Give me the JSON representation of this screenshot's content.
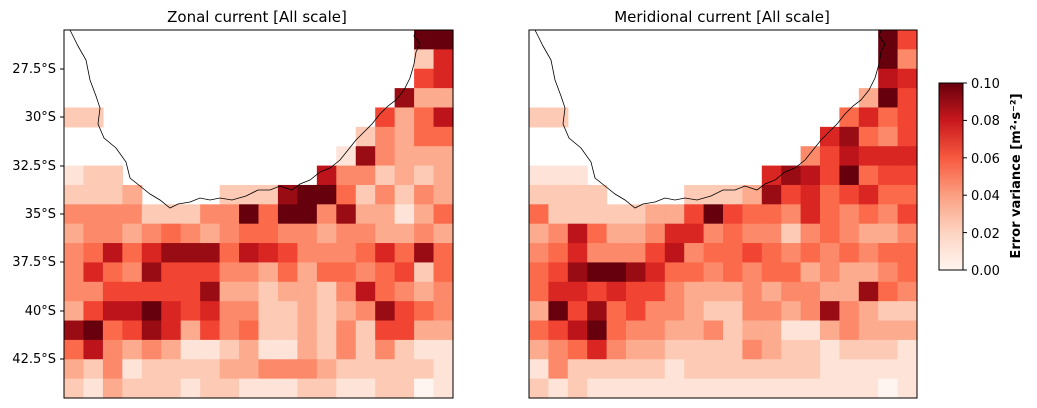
{
  "chart_data": [
    {
      "type": "heatmap",
      "title": "Zonal current [All scale]",
      "ylabel": "",
      "xlabel": "",
      "y_tick_labels": [
        "27.5°S",
        "30°S",
        "32.5°S",
        "35°S",
        "37.5°S",
        "40°S",
        "42.5°S"
      ],
      "lat_range": [
        -44.5,
        -25.5
      ],
      "lon_range": [
        114.0,
        134.0
      ],
      "colormap": "Reds",
      "value_range": [
        0.0,
        0.1
      ],
      "rows_note": "rows run north to south from 26°S to 44°S (1° cells), columns west to east from 114.5°E to 133.5°E; null = land or no data",
      "grid": [
        [
          null,
          null,
          null,
          null,
          null,
          null,
          null,
          null,
          null,
          null,
          null,
          null,
          null,
          null,
          null,
          null,
          null,
          null,
          0.1,
          0.1
        ],
        [
          null,
          null,
          null,
          null,
          null,
          null,
          null,
          null,
          null,
          null,
          null,
          null,
          null,
          null,
          null,
          null,
          null,
          null,
          0.02,
          0.07
        ],
        [
          null,
          null,
          null,
          null,
          null,
          null,
          null,
          null,
          null,
          null,
          null,
          null,
          null,
          null,
          null,
          null,
          null,
          null,
          0.06,
          0.07
        ],
        [
          null,
          null,
          null,
          null,
          null,
          null,
          null,
          null,
          null,
          null,
          null,
          null,
          null,
          null,
          null,
          null,
          null,
          0.09,
          0.03,
          0.03
        ],
        [
          0.02,
          0.02,
          null,
          null,
          null,
          null,
          null,
          null,
          null,
          null,
          null,
          null,
          null,
          null,
          null,
          null,
          0.06,
          0.03,
          0.05,
          0.08
        ],
        [
          null,
          null,
          null,
          null,
          null,
          null,
          null,
          null,
          null,
          null,
          null,
          null,
          null,
          null,
          null,
          0.02,
          0.04,
          0.03,
          0.05,
          0.05
        ],
        [
          null,
          null,
          null,
          null,
          null,
          null,
          null,
          null,
          null,
          null,
          null,
          null,
          null,
          null,
          0.01,
          0.09,
          0.04,
          0.03,
          0.03,
          0.03
        ],
        [
          0.01,
          0.02,
          0.02,
          null,
          null,
          null,
          null,
          null,
          null,
          null,
          null,
          null,
          null,
          0.08,
          0.04,
          0.04,
          0.02,
          0.03,
          0.02,
          0.03
        ],
        [
          0.02,
          0.02,
          0.02,
          0.03,
          null,
          null,
          null,
          null,
          0.02,
          0.02,
          0.02,
          0.09,
          0.1,
          0.1,
          0.05,
          0.02,
          0.04,
          0.02,
          0.04,
          0.03
        ],
        [
          0.04,
          0.04,
          0.04,
          0.04,
          0.02,
          0.02,
          0.02,
          0.04,
          0.04,
          0.1,
          0.05,
          0.1,
          0.1,
          0.04,
          0.09,
          0.03,
          0.03,
          0.01,
          0.03,
          0.05
        ],
        [
          0.03,
          0.04,
          0.04,
          0.03,
          0.04,
          0.05,
          0.04,
          0.03,
          0.04,
          0.05,
          0.05,
          0.04,
          0.04,
          0.03,
          0.04,
          0.04,
          0.03,
          0.03,
          0.04,
          0.03
        ],
        [
          0.04,
          0.05,
          0.08,
          0.05,
          0.07,
          0.09,
          0.09,
          0.09,
          0.05,
          0.08,
          0.07,
          0.06,
          0.04,
          0.04,
          0.04,
          0.05,
          0.07,
          0.05,
          0.09,
          0.05
        ],
        [
          0.04,
          0.07,
          0.05,
          0.04,
          0.09,
          0.06,
          0.06,
          0.06,
          0.04,
          0.04,
          0.03,
          0.05,
          0.03,
          0.05,
          0.05,
          0.04,
          0.05,
          0.06,
          0.02,
          0.05
        ],
        [
          0.04,
          0.04,
          0.06,
          0.06,
          0.06,
          0.06,
          0.06,
          0.09,
          0.03,
          0.03,
          0.02,
          0.03,
          0.03,
          0.02,
          0.04,
          0.08,
          0.05,
          0.04,
          0.03,
          0.04
        ],
        [
          0.03,
          0.06,
          0.08,
          0.08,
          0.1,
          0.07,
          0.06,
          0.07,
          0.04,
          0.04,
          0.02,
          0.02,
          0.03,
          0.02,
          0.03,
          0.04,
          0.09,
          0.06,
          0.05,
          0.04
        ],
        [
          0.09,
          0.1,
          0.05,
          0.06,
          0.09,
          0.07,
          0.03,
          0.06,
          0.04,
          0.05,
          0.02,
          0.02,
          0.03,
          0.02,
          0.04,
          0.02,
          0.06,
          0.06,
          0.03,
          0.03
        ],
        [
          0.05,
          0.08,
          0.04,
          0.03,
          0.04,
          0.03,
          0.01,
          0.01,
          0.02,
          0.03,
          0.01,
          0.01,
          0.03,
          0.02,
          0.04,
          0.02,
          0.04,
          0.02,
          0.01,
          0.01
        ],
        [
          0.03,
          0.02,
          0.04,
          0.01,
          0.02,
          0.02,
          0.02,
          0.02,
          0.03,
          0.03,
          0.04,
          0.04,
          0.04,
          0.03,
          0.02,
          0.02,
          0.02,
          0.02,
          0.02,
          0.01
        ],
        [
          0.02,
          0.01,
          0.03,
          0.02,
          0.02,
          0.02,
          0.01,
          0.02,
          0.02,
          0.01,
          0.01,
          0.01,
          0.02,
          0.02,
          0.01,
          0.01,
          0.02,
          0.02,
          0.0,
          0.01
        ]
      ]
    },
    {
      "type": "heatmap",
      "title": "Meridional current [All scale]",
      "ylabel": "",
      "xlabel": "",
      "lat_range": [
        -44.5,
        -25.5
      ],
      "lon_range": [
        114.0,
        134.0
      ],
      "colormap": "Reds",
      "value_range": [
        0.0,
        0.1
      ],
      "rows_note": "rows run north to south from 26°S to 44°S (1° cells), columns west to east from 114.5°E to 133.5°E; null = land or no data",
      "grid": [
        [
          null,
          null,
          null,
          null,
          null,
          null,
          null,
          null,
          null,
          null,
          null,
          null,
          null,
          null,
          null,
          null,
          null,
          null,
          0.1,
          0.06
        ],
        [
          null,
          null,
          null,
          null,
          null,
          null,
          null,
          null,
          null,
          null,
          null,
          null,
          null,
          null,
          null,
          null,
          null,
          null,
          0.1,
          0.04
        ],
        [
          null,
          null,
          null,
          null,
          null,
          null,
          null,
          null,
          null,
          null,
          null,
          null,
          null,
          null,
          null,
          null,
          null,
          null,
          0.08,
          0.07
        ],
        [
          null,
          null,
          null,
          null,
          null,
          null,
          null,
          null,
          null,
          null,
          null,
          null,
          null,
          null,
          null,
          null,
          null,
          0.03,
          0.1,
          0.06
        ],
        [
          0.02,
          0.02,
          null,
          null,
          null,
          null,
          null,
          null,
          null,
          null,
          null,
          null,
          null,
          null,
          null,
          null,
          0.05,
          0.07,
          0.05,
          0.06
        ],
        [
          null,
          null,
          null,
          null,
          null,
          null,
          null,
          null,
          null,
          null,
          null,
          null,
          null,
          null,
          null,
          0.07,
          0.09,
          0.05,
          0.04,
          0.06
        ],
        [
          null,
          null,
          null,
          null,
          null,
          null,
          null,
          null,
          null,
          null,
          null,
          null,
          null,
          null,
          0.04,
          0.06,
          0.08,
          0.07,
          0.07,
          0.07
        ],
        [
          0.01,
          0.01,
          0.01,
          null,
          null,
          null,
          null,
          null,
          null,
          null,
          null,
          null,
          0.07,
          0.09,
          0.08,
          0.06,
          0.1,
          0.05,
          0.06,
          0.06
        ],
        [
          0.02,
          0.02,
          0.02,
          0.02,
          null,
          null,
          null,
          null,
          0.02,
          0.02,
          0.02,
          0.03,
          0.09,
          0.06,
          0.07,
          0.05,
          0.06,
          0.07,
          0.05,
          0.05
        ],
        [
          0.05,
          0.02,
          0.02,
          0.02,
          0.02,
          0.02,
          0.03,
          0.03,
          0.06,
          0.1,
          0.06,
          0.05,
          0.05,
          0.04,
          0.07,
          0.05,
          0.04,
          0.05,
          0.04,
          0.06
        ],
        [
          0.03,
          0.04,
          0.08,
          0.05,
          0.03,
          0.03,
          0.04,
          0.07,
          0.07,
          0.04,
          0.05,
          0.04,
          0.04,
          0.02,
          0.04,
          0.05,
          0.04,
          0.03,
          0.03,
          0.04
        ],
        [
          0.04,
          0.05,
          0.07,
          0.04,
          0.04,
          0.04,
          0.06,
          0.08,
          0.04,
          0.05,
          0.05,
          0.06,
          0.05,
          0.04,
          0.05,
          0.04,
          0.05,
          0.04,
          0.05,
          0.05
        ],
        [
          0.05,
          0.06,
          0.09,
          0.1,
          0.1,
          0.09,
          0.07,
          0.05,
          0.05,
          0.04,
          0.05,
          0.04,
          0.05,
          0.05,
          0.03,
          0.04,
          0.03,
          0.03,
          0.04,
          0.05
        ],
        [
          0.05,
          0.07,
          0.07,
          0.06,
          0.07,
          0.06,
          0.06,
          0.04,
          0.03,
          0.03,
          0.03,
          0.04,
          0.03,
          0.04,
          0.04,
          0.03,
          0.03,
          0.09,
          0.05,
          0.04
        ],
        [
          0.03,
          0.1,
          0.06,
          0.09,
          0.05,
          0.06,
          0.04,
          0.04,
          0.03,
          0.02,
          0.02,
          0.04,
          0.04,
          0.03,
          0.04,
          0.09,
          0.04,
          0.03,
          0.02,
          0.02
        ],
        [
          0.05,
          0.06,
          0.08,
          0.1,
          0.05,
          0.04,
          0.04,
          0.03,
          0.03,
          0.04,
          0.02,
          0.03,
          0.03,
          0.01,
          0.01,
          0.03,
          0.04,
          0.03,
          0.03,
          0.03
        ],
        [
          0.03,
          0.04,
          0.05,
          0.07,
          0.04,
          0.03,
          0.03,
          0.02,
          0.02,
          0.02,
          0.02,
          0.04,
          0.03,
          0.02,
          0.02,
          0.01,
          0.02,
          0.02,
          0.02,
          0.01
        ],
        [
          0.01,
          0.04,
          0.02,
          0.02,
          0.02,
          0.02,
          0.02,
          0.01,
          0.02,
          0.02,
          0.02,
          0.02,
          0.02,
          0.02,
          0.02,
          0.01,
          0.01,
          0.01,
          0.01,
          0.01
        ],
        [
          0.02,
          0.01,
          0.02,
          0.01,
          0.01,
          0.01,
          0.01,
          0.01,
          0.01,
          0.01,
          0.01,
          0.01,
          0.01,
          0.01,
          0.01,
          0.01,
          0.01,
          0.01,
          0.0,
          0.01
        ]
      ]
    }
  ],
  "colorbar": {
    "label": "Error variance [m²·s⁻²]",
    "tick_labels": [
      "0.00",
      "0.02",
      "0.04",
      "0.06",
      "0.08",
      "0.10"
    ],
    "range": [
      0.0,
      0.1
    ],
    "colormap": "Reds"
  },
  "colors": {
    "reds_low": "#fff5f0",
    "reds_high": "#67000d",
    "coastline": "#000000",
    "land": "#ffffff"
  }
}
